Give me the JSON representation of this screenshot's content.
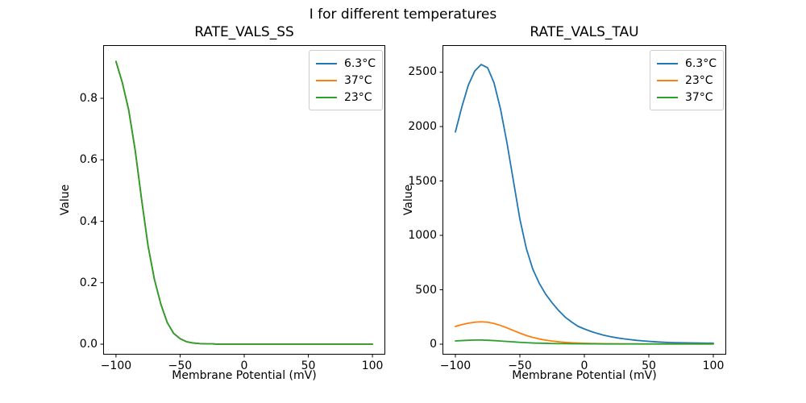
{
  "figure": {
    "suptitle": "I for different temperatures",
    "background_color": "#ffffff",
    "text_color": "#000000",
    "spine_color": "#000000"
  },
  "chart_data": [
    {
      "type": "line",
      "title": "RATE_VALS_SS",
      "xlabel": "Membrane Potential (mV)",
      "ylabel": "Value",
      "xlim": [
        -110,
        110
      ],
      "ylim": [
        -0.034,
        0.973
      ],
      "grid": false,
      "legend_loc": "upper right",
      "xticks": {
        "values": [
          -100,
          -50,
          0,
          50,
          100
        ],
        "labels": [
          "−100",
          "−50",
          "0",
          "50",
          "100"
        ]
      },
      "yticks": {
        "values": [
          0.0,
          0.2,
          0.4,
          0.6,
          0.8
        ],
        "labels": [
          "0.0",
          "0.2",
          "0.4",
          "0.6",
          "0.8"
        ]
      },
      "x": [
        -100,
        -95,
        -90,
        -85,
        -80,
        -75,
        -70,
        -65,
        -60,
        -55,
        -50,
        -45,
        -40,
        -35,
        -30,
        -25,
        -20,
        -15,
        -10,
        -5,
        0,
        5,
        10,
        15,
        20,
        25,
        30,
        35,
        40,
        45,
        50,
        55,
        60,
        65,
        70,
        75,
        80,
        85,
        90,
        95,
        100
      ],
      "series": [
        {
          "name": "6.3°C",
          "color": "#1f77b4",
          "values": [
            0.92,
            0.85,
            0.76,
            0.63,
            0.47,
            0.32,
            0.21,
            0.13,
            0.07,
            0.035,
            0.018,
            0.008,
            0.004,
            0.002,
            0.001,
            0.001,
            0,
            0,
            0,
            0,
            0,
            0,
            0,
            0,
            0,
            0,
            0,
            0,
            0,
            0,
            0,
            0,
            0,
            0,
            0,
            0,
            0,
            0,
            0,
            0,
            0
          ]
        },
        {
          "name": "37°C",
          "color": "#ff7f0e",
          "values": [
            0.92,
            0.85,
            0.76,
            0.63,
            0.47,
            0.32,
            0.21,
            0.13,
            0.07,
            0.035,
            0.018,
            0.008,
            0.004,
            0.002,
            0.001,
            0.001,
            0,
            0,
            0,
            0,
            0,
            0,
            0,
            0,
            0,
            0,
            0,
            0,
            0,
            0,
            0,
            0,
            0,
            0,
            0,
            0,
            0,
            0,
            0,
            0,
            0
          ]
        },
        {
          "name": "23°C",
          "color": "#2ca02c",
          "values": [
            0.92,
            0.85,
            0.76,
            0.63,
            0.47,
            0.32,
            0.21,
            0.13,
            0.07,
            0.035,
            0.018,
            0.008,
            0.004,
            0.002,
            0.001,
            0.001,
            0,
            0,
            0,
            0,
            0,
            0,
            0,
            0,
            0,
            0,
            0,
            0,
            0,
            0,
            0,
            0,
            0,
            0,
            0,
            0,
            0,
            0,
            0,
            0,
            0
          ]
        }
      ]
    },
    {
      "type": "line",
      "title": "RATE_VALS_TAU",
      "xlabel": "Membrane Potential (mV)",
      "ylabel": "Value",
      "xlim": [
        -110,
        110
      ],
      "ylim": [
        -96,
        2748
      ],
      "grid": false,
      "legend_loc": "upper right",
      "xticks": {
        "values": [
          -100,
          -50,
          0,
          50,
          100
        ],
        "labels": [
          "−100",
          "−50",
          "0",
          "50",
          "100"
        ]
      },
      "yticks": {
        "values": [
          0,
          500,
          1000,
          1500,
          2000,
          2500
        ],
        "labels": [
          "0",
          "500",
          "1000",
          "1500",
          "2000",
          "2500"
        ]
      },
      "x": [
        -100,
        -95,
        -90,
        -85,
        -80,
        -75,
        -70,
        -65,
        -60,
        -55,
        -50,
        -45,
        -40,
        -35,
        -30,
        -25,
        -20,
        -15,
        -10,
        -5,
        0,
        5,
        10,
        15,
        20,
        25,
        30,
        35,
        40,
        45,
        50,
        55,
        60,
        65,
        70,
        75,
        80,
        85,
        90,
        95,
        100
      ],
      "series": [
        {
          "name": "6.3°C",
          "color": "#1f77b4",
          "values": [
            1950,
            2180,
            2380,
            2510,
            2570,
            2540,
            2400,
            2160,
            1850,
            1500,
            1150,
            880,
            690,
            560,
            460,
            380,
            310,
            250,
            205,
            165,
            140,
            118,
            99,
            83,
            70,
            59,
            50,
            43,
            36,
            31,
            26,
            22,
            19,
            16,
            14,
            13,
            12,
            11,
            10,
            9,
            9
          ]
        },
        {
          "name": "23°C",
          "color": "#ff7f0e",
          "values": [
            163,
            180,
            193,
            202,
            206,
            202,
            190,
            172,
            150,
            126,
            102,
            80,
            62,
            48,
            37,
            29,
            22,
            17,
            13,
            10,
            8,
            7,
            6,
            5,
            4,
            4,
            3,
            3,
            3,
            2,
            2,
            2,
            2,
            2,
            2,
            2,
            2,
            2,
            2,
            2,
            2
          ]
        },
        {
          "name": "37°C",
          "color": "#2ca02c",
          "values": [
            30,
            33,
            36,
            38,
            38,
            36,
            33,
            29,
            25,
            21,
            17,
            14,
            11,
            9,
            8,
            6,
            5,
            5,
            4,
            4,
            3,
            3,
            3,
            2,
            2,
            2,
            2,
            2,
            2,
            2,
            2,
            2,
            2,
            2,
            2,
            2,
            2,
            2,
            2,
            2,
            2
          ]
        }
      ]
    }
  ]
}
